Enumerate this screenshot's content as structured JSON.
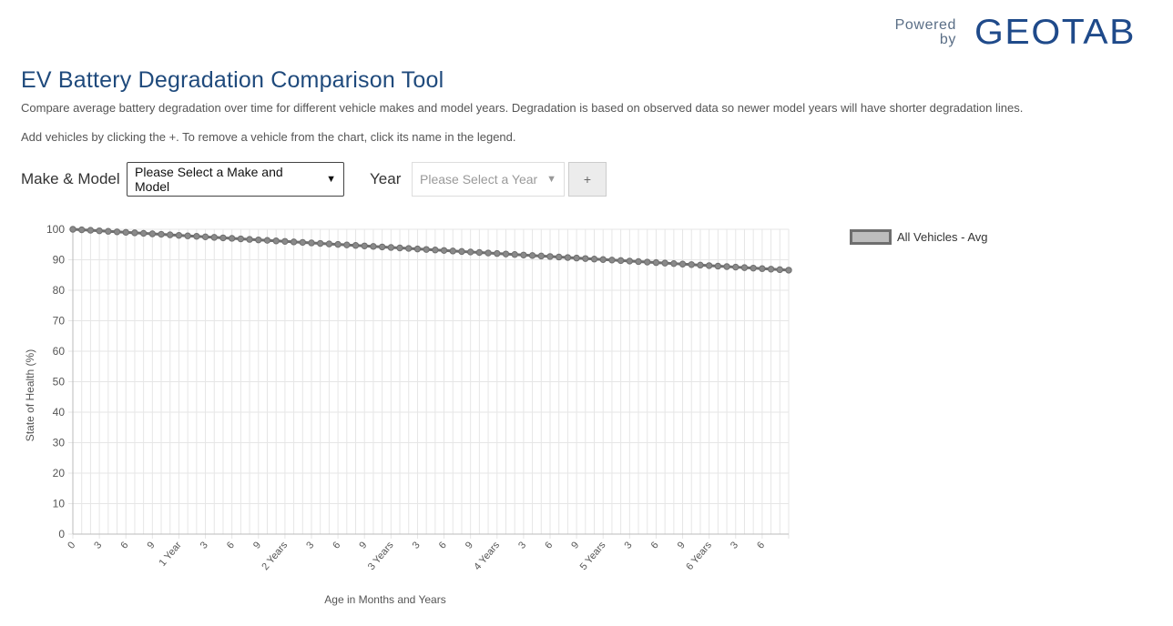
{
  "logo": {
    "powered": "Powered",
    "by": "by",
    "brand": "GEOTAB"
  },
  "title": "EV Battery Degradation Comparison Tool",
  "description": "Compare average battery degradation over time for different vehicle makes and model years. Degradation is based on observed data so newer model years will have shorter degradation lines.",
  "instructions": "Add vehicles by clicking the +. To remove a vehicle from the chart, click its name in the legend.",
  "controls": {
    "make_label": "Make & Model",
    "make_value": "Please Select a Make and Model",
    "year_label": "Year",
    "year_value": "Please Select a Year",
    "add_label": "+"
  },
  "colors": {
    "title": "#1f4a7c",
    "logo": "#1f4a8a",
    "series_line": "#6e6e6e",
    "series_fill": "#bdbdbd"
  },
  "chart_data": {
    "type": "line",
    "xlabel": "Age in Months and Years",
    "ylabel": "State of Health (%)",
    "ylim": [
      0,
      100
    ],
    "yticks": [
      0,
      10,
      20,
      30,
      40,
      50,
      60,
      70,
      80,
      90,
      100
    ],
    "xlim": [
      0,
      81
    ],
    "x_tick_labels": [
      "0",
      "3",
      "6",
      "9",
      "1 Year",
      "3",
      "6",
      "9",
      "2 Years",
      "3",
      "6",
      "9",
      "3 Years",
      "3",
      "6",
      "9",
      "4 Years",
      "3",
      "6",
      "9",
      "5 Years",
      "3",
      "6",
      "9",
      "6 Years",
      "3",
      "6"
    ],
    "grid": true,
    "legend_position": "right",
    "series": [
      {
        "name": "All Vehicles - Avg",
        "x_start": 0,
        "x_end": 81,
        "y_start": 100,
        "y_end": 86.6
      }
    ]
  }
}
